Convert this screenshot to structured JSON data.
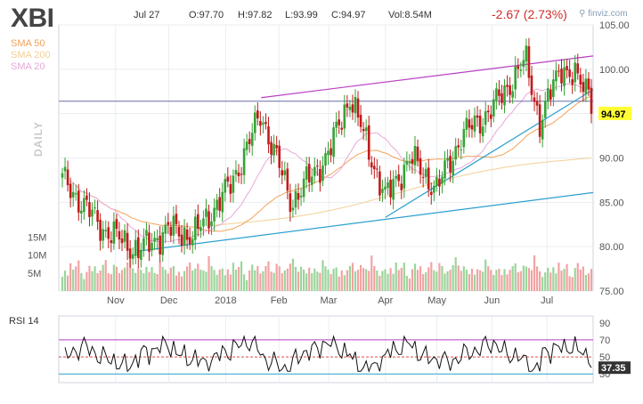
{
  "header": {
    "ticker": "XBI",
    "date": "Jul 27",
    "open": "O:97.70",
    "high": "H:97.82",
    "low": "L:93.99",
    "close": "C:94.97",
    "volume": "Vol:8.54M",
    "change": "-2.67 (2.73%)",
    "brand": "finviz.com"
  },
  "legend": {
    "sma50": "SMA 50",
    "sma200": "SMA 200",
    "sma20": "SMA 20",
    "timeframe": "DAILY"
  },
  "colors": {
    "up": "#36a336",
    "down": "#c21a1a",
    "sma50": "#f0a25a",
    "sma200": "#f2cf95",
    "sma20": "#e8a8d8",
    "channel": "#b93ec4",
    "trend": "#2aa0cf",
    "last_price_bg": "#ffff33"
  },
  "chart_data": [
    {
      "type": "candlestick",
      "x_tick_labels": [
        "Nov",
        "Dec",
        "2018",
        "Feb",
        "Mar",
        "Apr",
        "May",
        "Jun",
        "Jul"
      ],
      "y_tick_labels": [
        "75.00",
        "80.00",
        "85.00",
        "90.00",
        "95.00",
        "100.00",
        "105.00"
      ],
      "ylim": [
        75,
        105
      ],
      "last_price": "94.97",
      "key_prices": [
        {
          "date": "2017-10-02",
          "close": 87.6
        },
        {
          "date": "2017-10-25",
          "close": 82.0
        },
        {
          "date": "2017-11-14",
          "close": 79.5
        },
        {
          "date": "2017-12-01",
          "close": 82.0
        },
        {
          "date": "2017-12-15",
          "close": 81.2
        },
        {
          "date": "2018-01-05",
          "close": 87.0
        },
        {
          "date": "2018-01-22",
          "close": 95.0
        },
        {
          "date": "2018-02-08",
          "close": 85.0
        },
        {
          "date": "2018-03-01",
          "close": 90.5
        },
        {
          "date": "2018-03-13",
          "close": 97.0
        },
        {
          "date": "2018-04-02",
          "close": 85.5
        },
        {
          "date": "2018-04-16",
          "close": 90.0
        },
        {
          "date": "2018-05-01",
          "close": 86.5
        },
        {
          "date": "2018-05-15",
          "close": 92.5
        },
        {
          "date": "2018-06-01",
          "close": 95.5
        },
        {
          "date": "2018-06-20",
          "close": 101.0
        },
        {
          "date": "2018-06-28",
          "close": 94.0
        },
        {
          "date": "2018-07-10",
          "close": 100.5
        },
        {
          "date": "2018-07-24",
          "close": 97.7
        },
        {
          "date": "2018-07-27",
          "close": 94.97
        }
      ],
      "volume_tick_labels": [
        "5M",
        "10M",
        "15M"
      ],
      "volume_level": [
        4,
        5,
        3,
        6,
        4,
        5,
        7,
        4,
        3,
        5,
        6,
        4,
        5,
        3,
        4,
        6,
        8,
        5,
        4,
        6,
        5,
        3,
        4,
        5,
        7,
        9,
        6,
        4,
        5,
        4,
        3,
        5,
        4,
        6,
        5,
        4,
        7,
        5,
        4,
        3,
        5,
        6,
        4,
        5,
        3,
        4,
        5,
        6,
        4,
        5,
        7,
        6,
        5,
        4,
        8,
        5,
        4,
        3,
        5,
        6
      ]
    },
    {
      "type": "line",
      "title": "RSI 14",
      "y_tick_labels": [
        "30",
        "50",
        "70",
        "90"
      ],
      "last_value": "37.35"
    }
  ]
}
